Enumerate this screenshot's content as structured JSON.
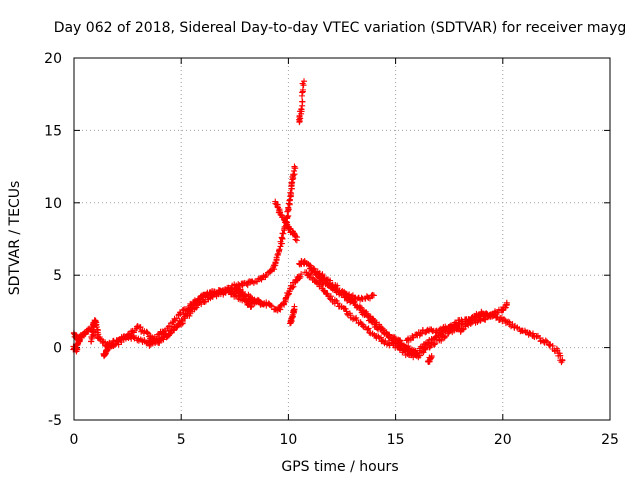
{
  "chart_data": {
    "type": "scatter",
    "title": "Day 062 of 2018, Sidereal Day-to-day VTEC variation (SDTVAR) for receiver mayg",
    "xlabel": "GPS time / hours",
    "ylabel": "SDTVAR / TECUs",
    "xlim": [
      0,
      25
    ],
    "ylim": [
      -5,
      20
    ],
    "xticks": [
      "0",
      "5",
      "10",
      "15",
      "20",
      "25"
    ],
    "yticks": [
      "-5",
      "0",
      "5",
      "10",
      "15",
      "20"
    ],
    "grid": true,
    "marker": "+",
    "series": [
      {
        "name": "SDTVAR",
        "color": "#ff0000",
        "segments": [
          {
            "x": [
              0.0,
              0.2,
              0.5,
              0.8,
              1.2,
              1.6,
              2.0,
              2.5,
              3.0,
              3.5,
              4.0,
              4.5,
              5.0,
              5.5,
              6.0,
              6.5,
              7.0,
              7.5,
              8.0,
              8.5,
              9.0,
              9.3,
              9.5,
              9.7,
              9.9,
              10.0,
              10.1,
              10.2,
              10.3
            ],
            "y": [
              1.0,
              0.5,
              1.0,
              1.3,
              0.6,
              0.2,
              0.4,
              0.8,
              0.6,
              0.4,
              0.9,
              1.5,
              2.4,
              3.0,
              3.6,
              3.8,
              3.9,
              4.2,
              4.4,
              4.6,
              5.0,
              5.5,
              6.3,
              7.4,
              8.6,
              9.6,
              10.6,
              11.5,
              12.5
            ]
          },
          {
            "x": [
              1.5,
              2.0,
              2.5,
              3.0,
              3.5,
              4.0,
              4.5,
              5.0,
              5.5,
              6.0,
              6.5,
              7.0,
              7.5,
              8.0,
              8.5,
              8.8
            ],
            "y": [
              0.0,
              0.3,
              0.8,
              1.4,
              0.8,
              0.4,
              1.0,
              1.7,
              2.5,
              3.2,
              3.6,
              3.8,
              4.0,
              3.6,
              3.2,
              3.0
            ]
          },
          {
            "x": [
              3.5,
              4.0,
              4.5,
              5.0,
              5.5,
              6.0,
              6.5,
              7.0,
              7.5,
              8.0,
              8.3
            ],
            "y": [
              0.2,
              0.6,
              1.0,
              1.9,
              2.9,
              3.5,
              3.8,
              3.9,
              3.6,
              3.2,
              2.8
            ]
          },
          {
            "x": [
              7.5,
              8.0,
              8.5,
              9.0,
              9.5,
              9.8,
              10.0,
              10.3,
              10.6
            ],
            "y": [
              4.3,
              3.6,
              3.1,
              3.0,
              2.6,
              3.0,
              3.8,
              4.5,
              5.0
            ]
          },
          {
            "x": [
              9.4,
              9.6,
              9.8,
              10.0,
              10.2,
              10.4
            ],
            "y": [
              10.0,
              9.4,
              8.8,
              8.3,
              7.9,
              7.5
            ]
          },
          {
            "x": [
              10.1,
              10.2,
              10.3
            ],
            "y": [
              1.7,
              2.2,
              2.7
            ]
          },
          {
            "x": [
              10.5,
              10.6,
              10.7
            ],
            "y": [
              15.5,
              16.5,
              18.5
            ]
          },
          {
            "x": [
              10.5,
              10.8,
              11.2,
              11.6,
              12.0,
              12.5,
              13.0,
              13.5,
              14.0,
              14.5,
              15.0,
              15.5,
              16.0,
              16.5,
              17.0,
              17.5,
              18.0,
              18.5,
              19.0,
              19.5,
              20.0,
              20.5,
              21.0,
              21.5,
              22.0,
              22.5,
              22.8
            ],
            "y": [
              5.8,
              5.9,
              5.3,
              4.9,
              4.4,
              3.9,
              3.2,
              2.4,
              1.6,
              1.0,
              0.4,
              -0.2,
              -0.3,
              0.3,
              0.9,
              1.4,
              1.8,
              2.0,
              2.2,
              2.2,
              1.9,
              1.5,
              1.1,
              0.8,
              0.4,
              -0.2,
              -1.0
            ]
          },
          {
            "x": [
              10.8,
              11.2,
              11.6,
              12.0,
              12.5,
              13.0,
              13.5,
              14.0,
              14.5,
              15.0,
              15.5,
              16.0,
              16.5,
              17.0,
              17.5,
              18.0,
              18.5,
              19.0,
              19.5
            ],
            "y": [
              5.2,
              4.7,
              4.1,
              3.4,
              2.8,
              2.1,
              1.5,
              0.9,
              0.4,
              0.1,
              -0.4,
              -0.6,
              0.0,
              0.5,
              1.0,
              1.6,
              1.9,
              2.4,
              2.2
            ]
          },
          {
            "x": [
              11.0,
              11.5,
              12.0,
              12.5,
              13.0,
              13.5,
              14.0,
              14.5,
              15.0,
              15.5,
              16.0
            ],
            "y": [
              5.6,
              4.9,
              4.2,
              3.6,
              3.1,
              2.6,
              1.8,
              1.1,
              0.6,
              0.1,
              -0.5
            ]
          },
          {
            "x": [
              11.5,
              12.0,
              12.5,
              13.0,
              13.5,
              14.0
            ],
            "y": [
              4.6,
              4.1,
              3.8,
              3.5,
              3.4,
              3.6
            ]
          },
          {
            "x": [
              15.5,
              16.0,
              16.5,
              17.0,
              17.5,
              18.0,
              18.5,
              19.0,
              19.5,
              20.0,
              20.2
            ],
            "y": [
              0.5,
              0.9,
              1.3,
              1.1,
              1.5,
              1.2,
              1.7,
              1.9,
              2.3,
              2.6,
              3.0
            ]
          },
          {
            "x": [
              0.0,
              0.1,
              0.2,
              0.3
            ],
            "y": [
              0.0,
              -0.2,
              0.4,
              0.8
            ]
          },
          {
            "x": [
              1.4,
              1.5,
              1.6
            ],
            "y": [
              -0.6,
              -0.2,
              0.2
            ]
          },
          {
            "x": [
              16.5,
              16.7
            ],
            "y": [
              -1.0,
              -0.6
            ]
          },
          {
            "x": [
              0.8,
              0.9,
              1.0,
              1.1
            ],
            "y": [
              0.3,
              1.6,
              1.9,
              1.0
            ]
          }
        ]
      }
    ]
  }
}
